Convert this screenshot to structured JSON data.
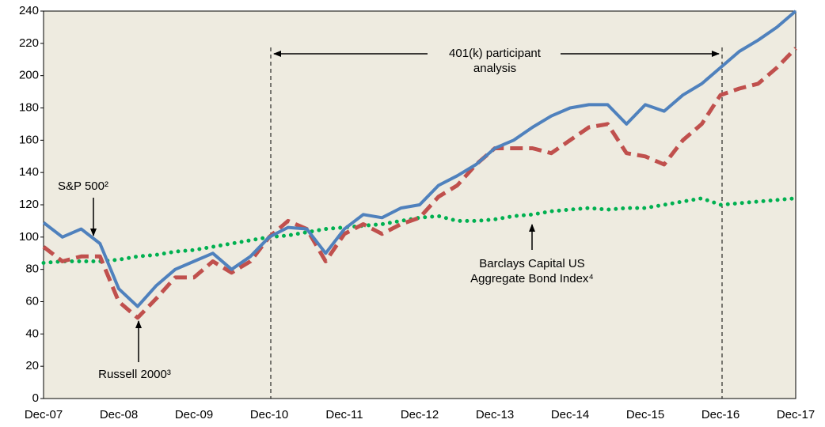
{
  "chart_data": {
    "type": "line",
    "categories": [
      "Dec-07",
      null,
      null,
      null,
      "Dec-08",
      null,
      null,
      null,
      "Dec-09",
      null,
      null,
      null,
      "Dec-10",
      null,
      null,
      null,
      "Dec-11",
      null,
      null,
      null,
      "Dec-12",
      null,
      null,
      null,
      "Dec-13",
      null,
      null,
      null,
      "Dec-14",
      null,
      null,
      null,
      "Dec-15",
      null,
      null,
      null,
      "Dec-16",
      null,
      null,
      null,
      "Dec-17"
    ],
    "series": [
      {
        "name": "S&P 500²",
        "color": "#4f81bd",
        "style": "solid",
        "values": [
          109,
          100,
          105,
          96,
          68,
          57,
          70,
          80,
          85,
          90,
          80,
          88,
          100,
          106,
          105,
          90,
          105,
          114,
          112,
          118,
          120,
          132,
          138,
          145,
          155,
          160,
          168,
          175,
          180,
          182,
          182,
          170,
          182,
          178,
          188,
          195,
          205,
          215,
          222,
          230,
          240
        ]
      },
      {
        "name": "Russell 2000³",
        "color": "#c0504d",
        "style": "dashed",
        "values": [
          94,
          85,
          88,
          88,
          60,
          50,
          62,
          75,
          75,
          85,
          78,
          85,
          100,
          110,
          105,
          85,
          102,
          108,
          102,
          108,
          112,
          125,
          132,
          145,
          155,
          155,
          155,
          152,
          160,
          168,
          170,
          152,
          150,
          145,
          160,
          170,
          188,
          192,
          195,
          205,
          217
        ]
      },
      {
        "color": "#00b050",
        "style": "dotted",
        "values": [
          84,
          85,
          85,
          85,
          86,
          88,
          89,
          91,
          92,
          94,
          96,
          98,
          100,
          101,
          103,
          105,
          106,
          107,
          108,
          110,
          112,
          113,
          110,
          110,
          111,
          113,
          114,
          116,
          117,
          118,
          117,
          118,
          118,
          120,
          122,
          124,
          120,
          121,
          122,
          123,
          124
        ]
      }
    ],
    "annotations": {
      "period": [
        "401(k) participant",
        "analysis"
      ],
      "bond": [
        "Barclays Capital US",
        "Aggregate Bond Index⁴"
      ]
    },
    "ylim": [
      0,
      240
    ],
    "yticks": [
      0,
      20,
      40,
      60,
      80,
      100,
      120,
      140,
      160,
      180,
      200,
      220,
      240
    ]
  }
}
